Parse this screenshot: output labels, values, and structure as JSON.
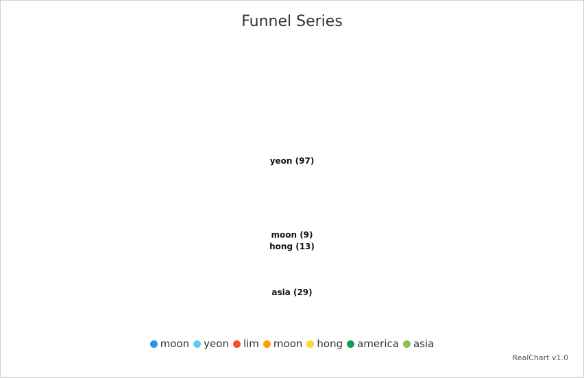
{
  "chart_data": {
    "type": "funnel",
    "title": "Funnel Series",
    "points": [
      {
        "name": "moon",
        "value": 9,
        "color": "#2196f3"
      },
      {
        "name": "yeon",
        "value": 97,
        "color": "#64c8f0"
      },
      {
        "name": "lim",
        "color": "#f4511e"
      },
      {
        "name": "moon",
        "color": "#ffa000"
      },
      {
        "name": "hong",
        "value": 13,
        "color": "#fdd835"
      },
      {
        "name": "america",
        "color": "#0f9d58"
      },
      {
        "name": "asia",
        "value": 29,
        "color": "#8bc34a"
      }
    ],
    "data_labels": [
      {
        "text": "yeon (97)"
      },
      {
        "text": "moon (9)"
      },
      {
        "text": "hong (13)"
      },
      {
        "text": "asia (29)"
      }
    ],
    "legend_position": "bottom"
  },
  "credit": "RealChart v1.0"
}
